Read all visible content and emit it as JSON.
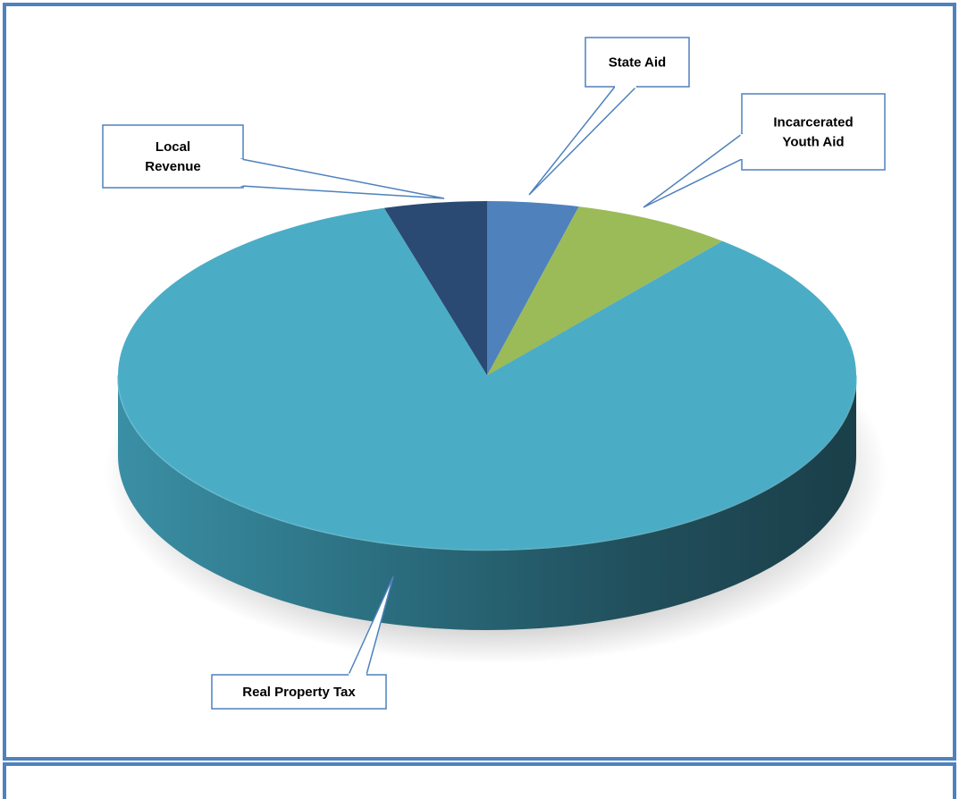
{
  "chart_data": {
    "type": "pie",
    "title": "",
    "style": "3d",
    "slices": [
      {
        "label": "Local Revenue",
        "label_lines": [
          "Local",
          "Revenue"
        ],
        "value": 4.5,
        "color": "#2a4a74"
      },
      {
        "label": "State Aid",
        "label_lines": [
          "State Aid"
        ],
        "value": 4.0,
        "color": "#4f81bd"
      },
      {
        "label": "Incarcerated Youth Aid",
        "label_lines": [
          "Incarcerated",
          "Youth Aid"
        ],
        "value": 7.0,
        "color": "#9bbb59"
      },
      {
        "label": "Real Property Tax",
        "label_lines": [
          "Real Property Tax"
        ],
        "value": 84.5,
        "color": "#4bacc6"
      }
    ],
    "legend": "none",
    "labels": "callouts"
  },
  "colors": {
    "frame_border": "#4f81bd",
    "callout_border": "#4f81bd",
    "side_dark": "#1f4a55",
    "side_mid": "#2f7b8f"
  }
}
